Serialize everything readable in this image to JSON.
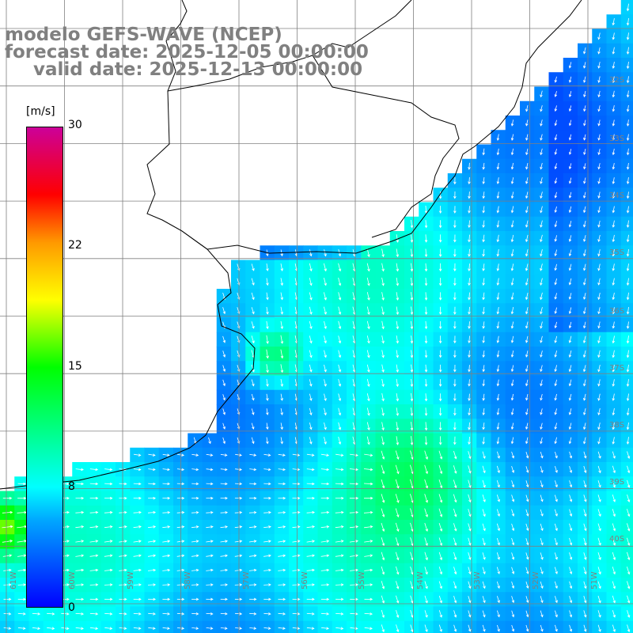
{
  "title": {
    "line1": "modelo GEFS-WAVE (NCEP)",
    "line2": "forecast date: 2025-12-05 00:00:00",
    "line3": "valid date: 2025-12-13 00:00:00"
  },
  "colorbar": {
    "unit": "[m/s]",
    "ticks": [
      "30",
      "22",
      "15",
      "8",
      "0"
    ],
    "min": 0,
    "max": 30,
    "colors": [
      "#0000ff",
      "#00a6ff",
      "#00ffff",
      "#00ff00",
      "#ffff00",
      "#ff9900",
      "#ff0000",
      "#cc0099"
    ]
  },
  "map": {
    "lat_labels": [
      "32S",
      "33S",
      "34S",
      "35S",
      "36S",
      "37S",
      "38S",
      "39S",
      "40S"
    ],
    "lon_labels": [
      "61W",
      "60W",
      "59W",
      "58W",
      "57W",
      "56W",
      "55W",
      "54W",
      "53W",
      "52W",
      "51W"
    ],
    "land_color": "#ffffff",
    "gridline_color": "#808080",
    "vector_color": "#ffffff"
  }
}
